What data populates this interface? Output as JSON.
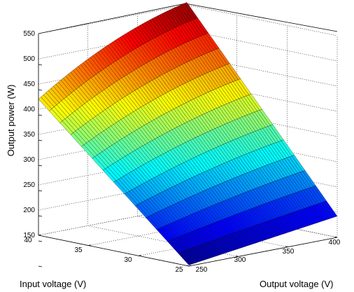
{
  "chart_data": {
    "type": "surface3d",
    "colormap": "jet",
    "grid": true,
    "xlabel": "Input voltage (V)",
    "ylabel": "Output voltage (V)",
    "zlabel": "Output power (W)",
    "xlim": [
      25,
      40
    ],
    "ylim": [
      250,
      400
    ],
    "zlim": [
      150,
      550
    ],
    "x_ticks": [
      25,
      30,
      35,
      40
    ],
    "y_ticks": [
      250,
      300,
      350,
      400
    ],
    "z_ticks": [
      150,
      200,
      250,
      300,
      350,
      400,
      450,
      500,
      550
    ],
    "surface_corners": [
      {
        "input_voltage": 40,
        "output_voltage": 250,
        "output_power": 420
      },
      {
        "input_voltage": 40,
        "output_voltage": 400,
        "output_power": 555
      },
      {
        "input_voltage": 25,
        "output_voltage": 400,
        "output_power": 192
      },
      {
        "input_voltage": 25,
        "output_voltage": 250,
        "output_power": 152
      }
    ]
  }
}
